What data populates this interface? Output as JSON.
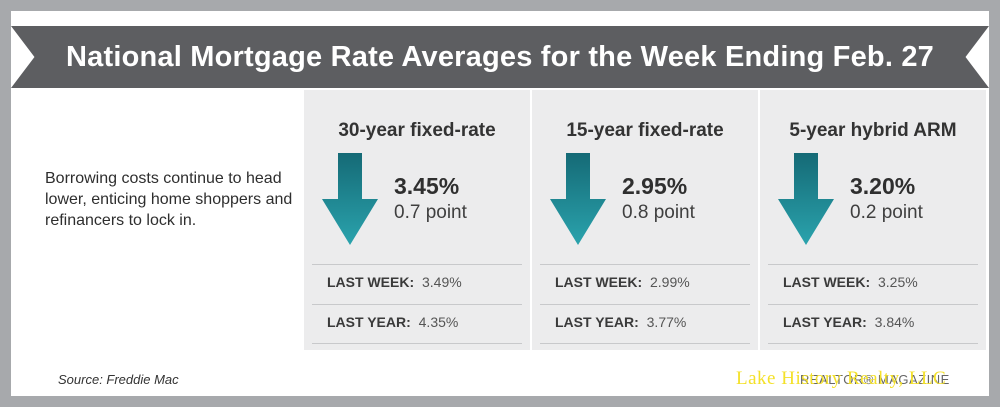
{
  "header": {
    "title": "National Mortgage Rate Averages for the Week Ending Feb. 27"
  },
  "intro_text": "Borrowing costs continue to head lower, enticing home shoppers and refinancers to lock in.",
  "cards": [
    {
      "title": "30-year fixed-rate",
      "rate": "3.45%",
      "points": "0.7 point",
      "last_week_label": "LAST WEEK:",
      "last_week_value": "3.49%",
      "last_year_label": "LAST YEAR:",
      "last_year_value": "4.35%"
    },
    {
      "title": "15-year fixed-rate",
      "rate": "2.95%",
      "points": "0.8 point",
      "last_week_label": "LAST WEEK:",
      "last_week_value": "2.99%",
      "last_year_label": "LAST YEAR:",
      "last_year_value": "3.77%"
    },
    {
      "title": "5-year hybrid ARM",
      "rate": "3.20%",
      "points": "0.2 point",
      "last_week_label": "LAST WEEK:",
      "last_week_value": "3.25%",
      "last_year_label": "LAST YEAR:",
      "last_year_value": "3.84%"
    }
  ],
  "footer": {
    "source": "Source: Freddie Mac",
    "publisher": "REALTOR® MAGAZINE",
    "watermark": "Lake History Realty, LLC"
  },
  "icons": {
    "down_arrow": "arrow-down-icon"
  },
  "colors": {
    "banner": "#5d5e61",
    "arrow_dark": "#156a76",
    "arrow_light": "#2aa3ad",
    "card_bg": "#ececed",
    "watermark": "#f4e12a"
  }
}
